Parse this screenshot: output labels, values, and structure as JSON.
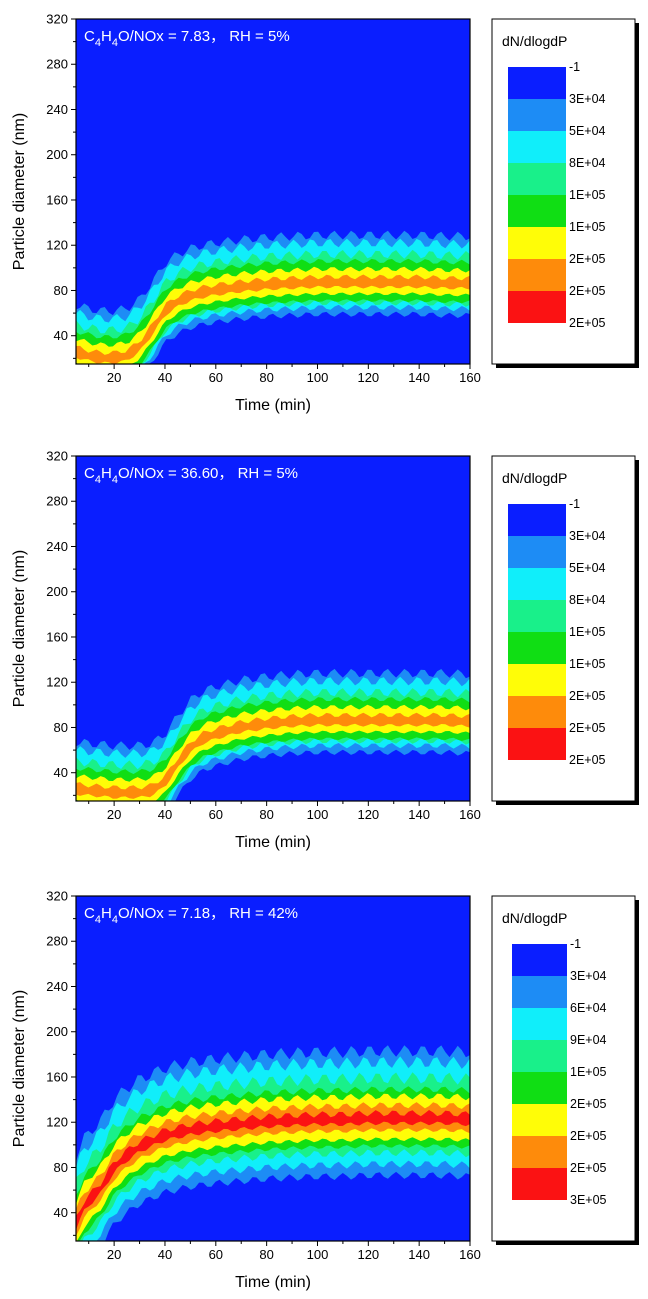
{
  "chart_data": [
    {
      "type": "heatmap",
      "title": "",
      "annotation": {
        "base": "C",
        "sub1": "4",
        "mid1": "H",
        "sub2": "4",
        "rest": "O/NOx = 7.83，  RH = 5%"
      },
      "xlabel": "Time (min)",
      "ylabel": "Particle diameter (nm)",
      "xlim": [
        5,
        160
      ],
      "ylim": [
        15,
        320
      ],
      "xticks": [
        20,
        40,
        60,
        80,
        100,
        120,
        140,
        160
      ],
      "yticks": [
        40,
        80,
        120,
        160,
        200,
        240,
        280,
        320
      ],
      "legend_title": "dN/dlogdP",
      "legend_labels": [
        "-1",
        "3E+04",
        "5E+04",
        "8E+04",
        "1E+05",
        "1E+05",
        "2E+05",
        "2E+05",
        "2E+05"
      ],
      "level_colors": [
        "#0a1eff",
        "#1d8cf5",
        "#10eefa",
        "#19f08a",
        "#10de14",
        "#fffd07",
        "#fe8b0b",
        "#fb1213"
      ],
      "bands": {
        "time": [
          5,
          10,
          15,
          20,
          25,
          30,
          35,
          40,
          45,
          50,
          55,
          60,
          70,
          80,
          90,
          100,
          110,
          120,
          130,
          140,
          150,
          160
        ],
        "center": [
          25,
          22,
          20,
          20,
          22,
          30,
          45,
          62,
          70,
          75,
          78,
          80,
          83,
          85,
          86,
          87,
          87,
          87,
          87,
          87,
          86,
          86
        ],
        "half_widths": [
          [
            42,
            28
          ],
          [
            35,
            22
          ],
          [
            25,
            18
          ],
          [
            19,
            16
          ],
          [
            12,
            10
          ],
          [
            5,
            4
          ],
          [
            0,
            0
          ]
        ],
        "wobble": 3
      }
    },
    {
      "type": "heatmap",
      "title": "",
      "annotation": {
        "base": "C",
        "sub1": "4",
        "mid1": "H",
        "sub2": "4",
        "rest": "O/NOx = 36.60，  RH = 5%"
      },
      "xlabel": "Time (min)",
      "ylabel": "Particle diameter (nm)",
      "xlim": [
        5,
        160
      ],
      "ylim": [
        15,
        320
      ],
      "xticks": [
        20,
        40,
        60,
        80,
        100,
        120,
        140,
        160
      ],
      "yticks": [
        40,
        80,
        120,
        160,
        200,
        240,
        280,
        320
      ],
      "legend_title": "dN/dlogdP",
      "legend_labels": [
        "-1",
        "3E+04",
        "5E+04",
        "8E+04",
        "1E+05",
        "1E+05",
        "2E+05",
        "2E+05",
        "2E+05"
      ],
      "level_colors": [
        "#0a1eff",
        "#1d8cf5",
        "#10eefa",
        "#19f08a",
        "#10de14",
        "#fffd07",
        "#fe8b0b",
        "#fb1213"
      ],
      "bands": {
        "time": [
          5,
          10,
          15,
          20,
          25,
          30,
          35,
          40,
          45,
          50,
          55,
          60,
          70,
          80,
          90,
          100,
          110,
          120,
          130,
          140,
          150,
          160
        ],
        "center": [
          25,
          24,
          23,
          22,
          22,
          22,
          24,
          32,
          48,
          62,
          70,
          74,
          80,
          83,
          85,
          86,
          86,
          86,
          86,
          86,
          86,
          85
        ],
        "half_widths": [
          [
            42,
            28
          ],
          [
            35,
            22
          ],
          [
            25,
            18
          ],
          [
            19,
            16
          ],
          [
            12,
            10
          ],
          [
            5,
            4
          ],
          [
            0,
            0
          ]
        ],
        "wobble": 3
      }
    },
    {
      "type": "heatmap",
      "title": "",
      "annotation": {
        "base": "C",
        "sub1": "4",
        "mid1": "H",
        "sub2": "4",
        "rest": "O/NOx = 7.18，  RH = 42%"
      },
      "xlabel": "Time (min)",
      "ylabel": "Particle diameter (nm)",
      "xlim": [
        5,
        160
      ],
      "ylim": [
        15,
        320
      ],
      "xticks": [
        20,
        40,
        60,
        80,
        100,
        120,
        140,
        160
      ],
      "yticks": [
        40,
        80,
        120,
        160,
        200,
        240,
        280,
        320
      ],
      "legend_title": "dN/dlogdP",
      "legend_labels": [
        "-1",
        "3E+04",
        "6E+04",
        "9E+04",
        "1E+05",
        "2E+05",
        "2E+05",
        "2E+05",
        "3E+05"
      ],
      "level_colors": [
        "#0a1eff",
        "#1d8cf5",
        "#10eefa",
        "#19f08a",
        "#10de14",
        "#fffd07",
        "#fe8b0b",
        "#fb1213"
      ],
      "bands": {
        "time": [
          5,
          8,
          12,
          15,
          20,
          25,
          30,
          40,
          50,
          60,
          70,
          80,
          90,
          100,
          110,
          120,
          130,
          140,
          150,
          160
        ],
        "center": [
          30,
          45,
          55,
          62,
          80,
          90,
          98,
          108,
          113,
          116,
          118,
          120,
          121,
          122,
          122,
          123,
          123,
          123,
          123,
          122
        ],
        "half_widths": [
          [
            60,
            50
          ],
          [
            50,
            40
          ],
          [
            36,
            30
          ],
          [
            26,
            24
          ],
          [
            20,
            18
          ],
          [
            12,
            10
          ],
          [
            5,
            4
          ]
        ],
        "wobble": 4
      }
    }
  ]
}
